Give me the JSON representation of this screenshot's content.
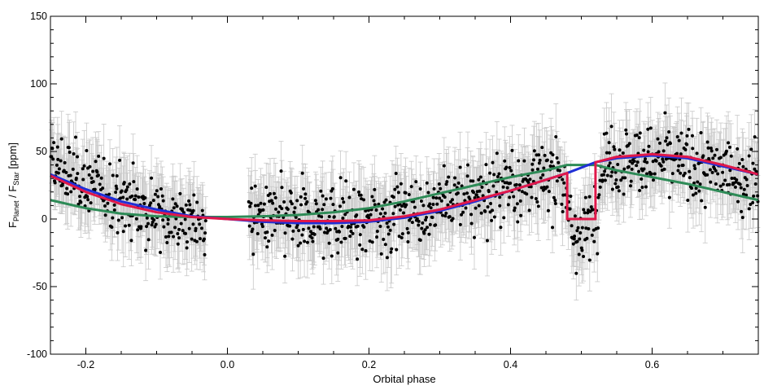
{
  "chart_data": {
    "type": "scatter",
    "title": "",
    "xlabel": "Orbital phase",
    "ylabel": {
      "prefix": "F",
      "sub1": "Planet",
      "mid": " / F",
      "sub2": "Star",
      "suffix": " [ppm]"
    },
    "xlim": [
      -0.25,
      0.75
    ],
    "ylim": [
      -100,
      150
    ],
    "x_ticks": [
      -0.2,
      0.0,
      0.2,
      0.4,
      0.6
    ],
    "x_tick_labels": [
      "-0.2",
      "0.0",
      "0.2",
      "0.4",
      "0.6"
    ],
    "y_ticks": [
      -100,
      -50,
      0,
      50,
      100,
      150
    ],
    "y_tick_labels": [
      "-100",
      "-50",
      "0",
      "50",
      "100",
      "150"
    ],
    "grid": false,
    "colors": {
      "points": "#000000",
      "error_bars": "#c8c8c8",
      "model_blue": "#1f2fd6",
      "model_red": "#e0184a",
      "model_green": "#2e8b57"
    },
    "observed_phase_ranges": [
      [
        -0.25,
        -0.03
      ],
      [
        0.03,
        0.75
      ]
    ],
    "typical_error_bar_ppm": 22,
    "scatter_trend": {
      "phase": [
        -0.25,
        -0.2,
        -0.15,
        -0.1,
        -0.05,
        -0.03,
        0.03,
        0.1,
        0.2,
        0.3,
        0.4,
        0.47,
        0.48,
        0.5,
        0.52,
        0.53,
        0.6,
        0.7,
        0.75
      ],
      "mean_ppm": [
        38,
        28,
        15,
        5,
        -2,
        -5,
        2,
        -3,
        0,
        10,
        25,
        35,
        0,
        -15,
        5,
        42,
        45,
        35,
        30
      ],
      "scatter_ppm": 18
    },
    "series": [
      {
        "type": "line",
        "color_key": "model_green",
        "x": [
          -0.25,
          -0.2,
          -0.15,
          -0.1,
          -0.05,
          0.0,
          0.05,
          0.1,
          0.15,
          0.2,
          0.25,
          0.3,
          0.35,
          0.4,
          0.45,
          0.48,
          0.52,
          0.55,
          0.6,
          0.65,
          0.7,
          0.75
        ],
        "y": [
          14,
          8,
          4,
          2,
          1.5,
          1.5,
          2,
          3,
          5,
          8,
          13,
          19,
          25,
          31,
          36,
          40,
          40,
          36,
          31,
          26,
          20,
          14
        ]
      },
      {
        "type": "line",
        "color_key": "model_blue",
        "x": [
          -0.25,
          -0.2,
          -0.15,
          -0.1,
          -0.05,
          0.0,
          0.05,
          0.1,
          0.15,
          0.2,
          0.25,
          0.3,
          0.35,
          0.4,
          0.45,
          0.48,
          0.52,
          0.55,
          0.6,
          0.65,
          0.7,
          0.75
        ],
        "y": [
          33,
          22,
          13,
          7,
          2,
          0,
          -2,
          -3,
          -3,
          -2,
          1,
          6,
          13,
          21,
          29,
          34,
          42,
          45,
          47,
          45,
          39,
          33
        ]
      },
      {
        "type": "line",
        "color_key": "model_red",
        "x": [
          -0.25,
          -0.2,
          -0.15,
          -0.1,
          -0.05,
          0.0,
          0.05,
          0.1,
          0.15,
          0.2,
          0.25,
          0.3,
          0.35,
          0.4,
          0.45,
          0.48,
          0.48,
          0.52,
          0.52,
          0.55,
          0.6,
          0.65,
          0.7,
          0.75
        ],
        "y": [
          32,
          20,
          11,
          5,
          1.5,
          0,
          -1,
          -1.5,
          -1.5,
          -1,
          2,
          7,
          14,
          21,
          29,
          34,
          0,
          0,
          42,
          46,
          48,
          46,
          40,
          33
        ]
      }
    ]
  }
}
